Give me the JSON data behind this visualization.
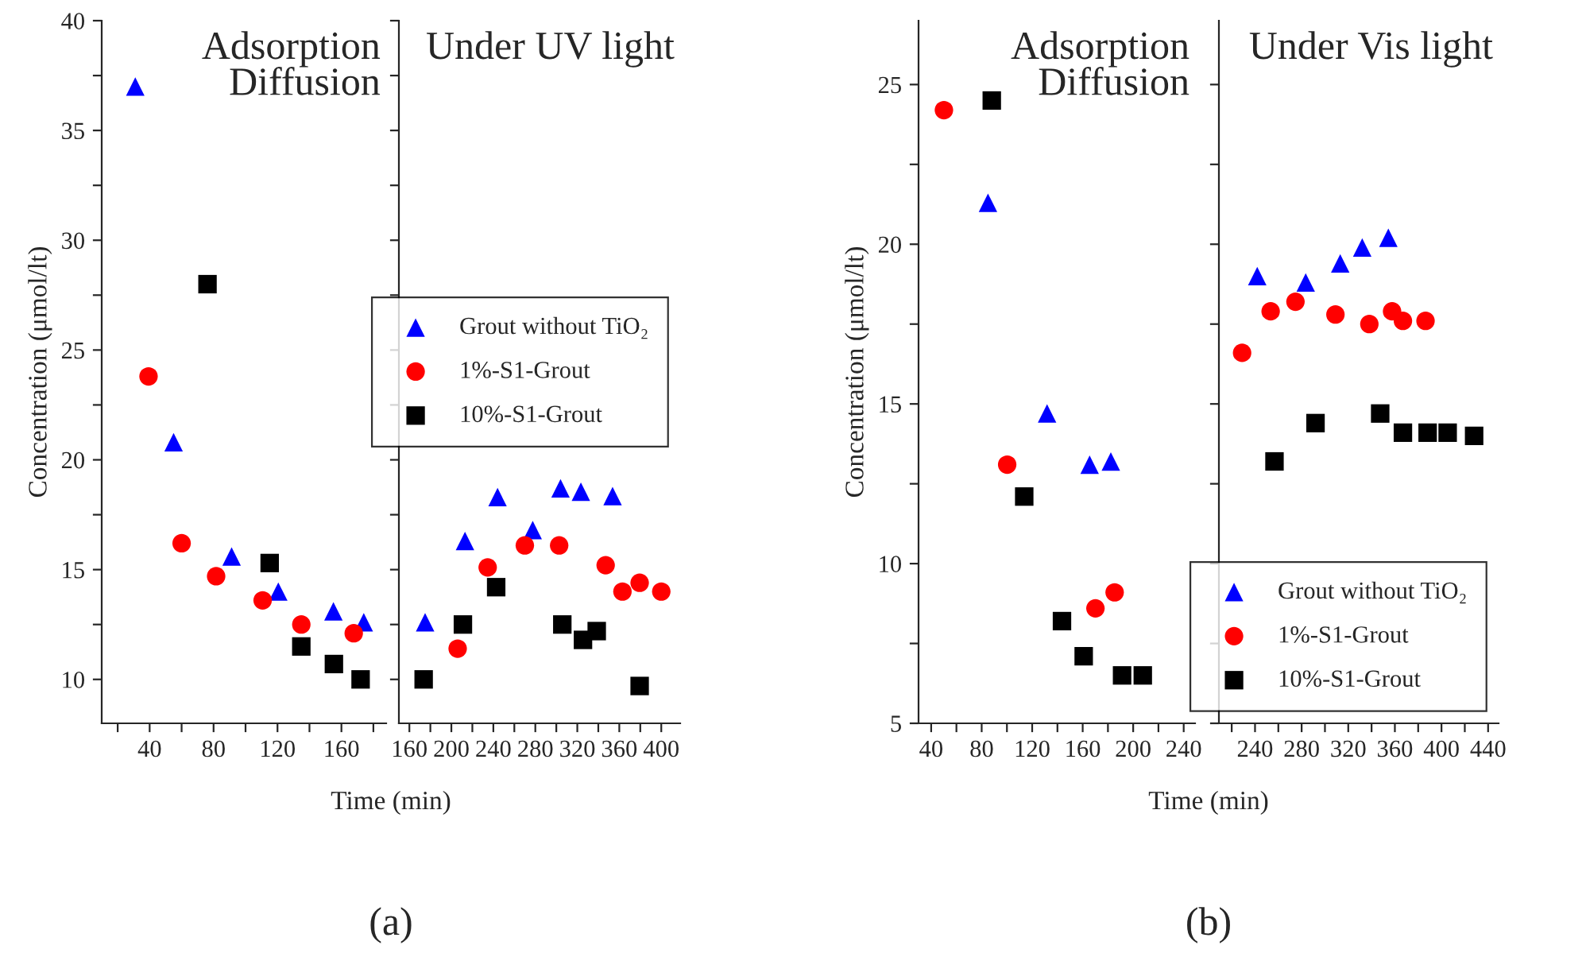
{
  "chart_data": [
    {
      "type": "scatter",
      "ylabel": "Concentration (μmol/lt)",
      "xlabel": "Time (min)",
      "annotations": [
        "Adsorption\nDiffusion",
        "(a)"
      ],
      "xlim": [
        10,
        188
      ],
      "xticks": [
        {
          "value": 20,
          "label": null
        },
        40,
        {
          "value": 60,
          "label": null
        },
        80,
        {
          "value": 100,
          "label": null
        },
        120,
        {
          "value": 140,
          "label": null
        },
        160,
        {
          "value": 180,
          "label": null
        }
      ],
      "ylim": [
        8,
        40
      ],
      "yticks": [
        10,
        {
          "value": 12.5,
          "label": null
        },
        15,
        {
          "value": 17.5,
          "label": null
        },
        20,
        {
          "value": 22.5,
          "label": null
        },
        25,
        {
          "value": 27.5,
          "label": null
        },
        30,
        {
          "value": 32.5,
          "label": null
        },
        35,
        {
          "value": 37.5,
          "label": null
        },
        40
      ],
      "grid": false,
      "legend": false,
      "series": [
        {
          "color": "#0000ff",
          "marker": "triangle",
          "x": [
            31,
            55,
            91.3,
            120.5,
            155,
            174
          ],
          "values": [
            37.0,
            20.8,
            15.6,
            14.0,
            13.1,
            12.6
          ]
        },
        {
          "color": "#ff0000",
          "marker": "circle",
          "x": [
            39.3,
            60,
            81.6,
            110.7,
            134.9,
            167.7
          ],
          "values": [
            23.8,
            16.2,
            14.7,
            13.6,
            12.5,
            12.1
          ]
        },
        {
          "color": "#000000",
          "marker": "square",
          "x": [
            76.2,
            115.1,
            134.9,
            155.3,
            172
          ],
          "values": [
            28.0,
            15.3,
            11.5,
            10.7,
            10.0
          ]
        }
      ]
    },
    {
      "type": "scatter",
      "annotations": [
        "Under UV light"
      ],
      "xlim": [
        150,
        418
      ],
      "xticks": [
        160,
        {
          "value": 180,
          "label": null
        },
        200,
        {
          "value": 220,
          "label": null
        },
        240,
        {
          "value": 260,
          "label": null
        },
        280,
        {
          "value": 300,
          "label": null
        },
        320,
        {
          "value": 340,
          "label": null
        },
        360,
        {
          "value": 380,
          "label": null
        },
        400
      ],
      "ylim": [
        8,
        40
      ],
      "yticks": [
        10,
        12.5,
        15,
        17.5,
        20,
        22.5,
        25,
        27.5,
        30,
        32.5,
        35,
        37.5,
        40
      ],
      "tick_labels": "x",
      "grid": false,
      "legend": "right",
      "series": [
        {
          "name": "Grout without TiO₂",
          "color": "#0000ff",
          "marker": "triangle",
          "x": [
            175,
            213,
            244,
            277.5,
            304,
            323.4,
            353.6
          ],
          "values": [
            12.6,
            16.3,
            18.3,
            16.8,
            18.7,
            18.55,
            18.35
          ]
        },
        {
          "name": "1%-S1-Grout",
          "color": "#ff0000",
          "marker": "circle",
          "x": [
            206,
            234.6,
            270,
            302.7,
            347,
            363,
            379.4,
            400
          ],
          "values": [
            11.4,
            15.1,
            16.1,
            16.1,
            15.2,
            14.0,
            14.4,
            14.0
          ]
        },
        {
          "name": "10%-S1-Grout",
          "color": "#000000",
          "marker": "square",
          "x": [
            173.6,
            211,
            242.7,
            305.7,
            325.4,
            338.5,
            379.4
          ],
          "values": [
            10.0,
            12.5,
            14.2,
            12.5,
            11.8,
            12.2,
            9.7
          ]
        }
      ]
    },
    {
      "type": "scatter",
      "ylabel": "Concentration (μmol/lt)",
      "xlabel": "Time (min)",
      "annotations": [
        "Adsorption\nDiffusion",
        "(b)"
      ],
      "xlim": [
        30,
        249
      ],
      "xticks": [
        40,
        {
          "value": 60,
          "label": null
        },
        80,
        {
          "value": 100,
          "label": null
        },
        120,
        {
          "value": 140,
          "label": null
        },
        160,
        {
          "value": 180,
          "label": null
        },
        200,
        {
          "value": 220,
          "label": null
        },
        240
      ],
      "ylim": [
        5,
        27
      ],
      "yticks": [
        5,
        {
          "value": 7.5,
          "label": null
        },
        10,
        {
          "value": 12.5,
          "label": null
        },
        15,
        {
          "value": 17.5,
          "label": null
        },
        20,
        {
          "value": 22.5,
          "label": null
        },
        25
      ],
      "grid": false,
      "legend": false,
      "series": [
        {
          "color": "#0000ff",
          "marker": "triangle",
          "x": [
            85,
            131.8,
            165.5,
            182.3
          ],
          "values": [
            21.3,
            14.7,
            13.1,
            13.2
          ]
        },
        {
          "color": "#ff0000",
          "marker": "circle",
          "x": [
            50.1,
            100.2,
            170.1,
            185.3
          ],
          "values": [
            24.2,
            13.1,
            8.6,
            9.1
          ]
        },
        {
          "color": "#000000",
          "marker": "square",
          "x": [
            88,
            113.7,
            143.6,
            160.8,
            191.2,
            207.6
          ],
          "values": [
            24.5,
            12.1,
            8.2,
            7.1,
            6.5,
            6.5
          ]
        }
      ]
    },
    {
      "type": "scatter",
      "annotations": [
        "Under Vis light"
      ],
      "xlim": [
        209,
        449
      ],
      "xticks": [
        {
          "value": 220,
          "label": null
        },
        240,
        {
          "value": 260,
          "label": null
        },
        280,
        {
          "value": 300,
          "label": null
        },
        320,
        {
          "value": 340,
          "label": null
        },
        360,
        {
          "value": 380,
          "label": null
        },
        400,
        {
          "value": 420,
          "label": null
        },
        440
      ],
      "ylim": [
        5,
        27
      ],
      "yticks": [
        5,
        7.5,
        10,
        12.5,
        15,
        17.5,
        20,
        22.5,
        25
      ],
      "tick_labels": "x",
      "grid": false,
      "legend": "bottom right",
      "series": [
        {
          "name": "Grout without TiO₂",
          "color": "#0000ff",
          "marker": "triangle",
          "x": [
            241.9,
            283.5,
            313.1,
            332,
            354.4
          ],
          "values": [
            19.0,
            18.8,
            19.4,
            19.9,
            20.2
          ]
        },
        {
          "name": "1%-S1-Grout",
          "color": "#ff0000",
          "marker": "circle",
          "x": [
            228.9,
            253.4,
            274.7,
            309,
            338.1,
            357.6,
            366.9,
            386.3
          ],
          "values": [
            16.6,
            17.9,
            18.2,
            17.8,
            17.5,
            17.9,
            17.6,
            17.6
          ]
        },
        {
          "name": "10%-S1-Grout",
          "color": "#000000",
          "marker": "square",
          "x": [
            256.7,
            291.9,
            347.4,
            366.9,
            388.1,
            405.3,
            428
          ],
          "values": [
            13.2,
            14.4,
            14.7,
            14.1,
            14.1,
            14.1,
            14.0
          ]
        }
      ]
    }
  ]
}
